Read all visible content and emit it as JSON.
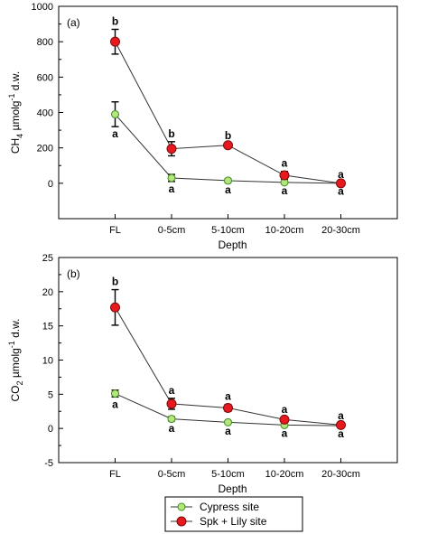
{
  "chart_data": [
    {
      "type": "line",
      "panel_label": "(a)",
      "xlabel": "Depth",
      "ylabel_main": "CH",
      "ylabel_sub": "4",
      "ylabel_unit": " µmolg",
      "ylabel_sup": "-1",
      "ylabel_tail": " d.w.",
      "categories": [
        "FL",
        "0-5cm",
        "5-10cm",
        "10-20cm",
        "20-30cm"
      ],
      "ylim": [
        -200,
        1000
      ],
      "yticks": [
        "0",
        "200",
        "400",
        "600",
        "800",
        "1000"
      ],
      "series": [
        {
          "name": "Cypress site",
          "values": [
            390,
            30,
            15,
            5,
            0
          ],
          "errors": [
            70,
            20,
            10,
            5,
            3
          ],
          "letters": [
            "a",
            "a",
            "a",
            "a",
            "a"
          ],
          "letter_side": [
            "below",
            "below",
            "below",
            "below",
            "below"
          ],
          "marker_fill": "#b4e67d",
          "marker_stroke": "#3c8c1e"
        },
        {
          "name": "Spk + Lily site",
          "values": [
            800,
            195,
            215,
            45,
            0
          ],
          "errors": [
            70,
            40,
            8,
            22,
            3
          ],
          "letters": [
            "b",
            "b",
            "b",
            "a",
            "a"
          ],
          "letter_side": [
            "above",
            "above",
            "above",
            "above",
            "above"
          ],
          "marker_fill": "#e8191e",
          "marker_stroke": "#7a0a0a"
        }
      ],
      "grid": false
    },
    {
      "type": "line",
      "panel_label": "(b)",
      "xlabel": "Depth",
      "ylabel_main": "CO",
      "ylabel_sub": "2",
      "ylabel_unit": " µmolg",
      "ylabel_sup": "-1",
      "ylabel_tail": " d.w.",
      "categories": [
        "FL",
        "0-5cm",
        "5-10cm",
        "10-20cm",
        "20-30cm"
      ],
      "ylim": [
        -5,
        25
      ],
      "yticks": [
        "-5",
        "0",
        "5",
        "10",
        "15",
        "20",
        "25"
      ],
      "series": [
        {
          "name": "Cypress site",
          "values": [
            5.1,
            1.4,
            0.9,
            0.5,
            0.4
          ],
          "errors": [
            0.5,
            0.3,
            0.2,
            0.15,
            0.1
          ],
          "letters": [
            "a",
            "a",
            "a",
            "a",
            "a"
          ],
          "letter_side": [
            "below",
            "below",
            "below",
            "below",
            "below"
          ],
          "marker_fill": "#b4e67d",
          "marker_stroke": "#3c8c1e"
        },
        {
          "name": "Spk + Lily site",
          "values": [
            17.7,
            3.6,
            3.0,
            1.3,
            0.5
          ],
          "errors": [
            2.6,
            0.8,
            0.5,
            0.3,
            0.2
          ],
          "letters": [
            "b",
            "a",
            "a",
            "a",
            "a"
          ],
          "letter_side": [
            "above",
            "above",
            "above",
            "above",
            "above"
          ],
          "marker_fill": "#e8191e",
          "marker_stroke": "#7a0a0a"
        }
      ],
      "grid": false
    }
  ],
  "legend": {
    "placement": "bottom-center",
    "entries": [
      {
        "label": "Cypress site",
        "marker_fill": "#b4e67d",
        "marker_stroke": "#3c8c1e"
      },
      {
        "label": "Spk + Lily site",
        "marker_fill": "#e8191e",
        "marker_stroke": "#7a0a0a"
      }
    ]
  }
}
